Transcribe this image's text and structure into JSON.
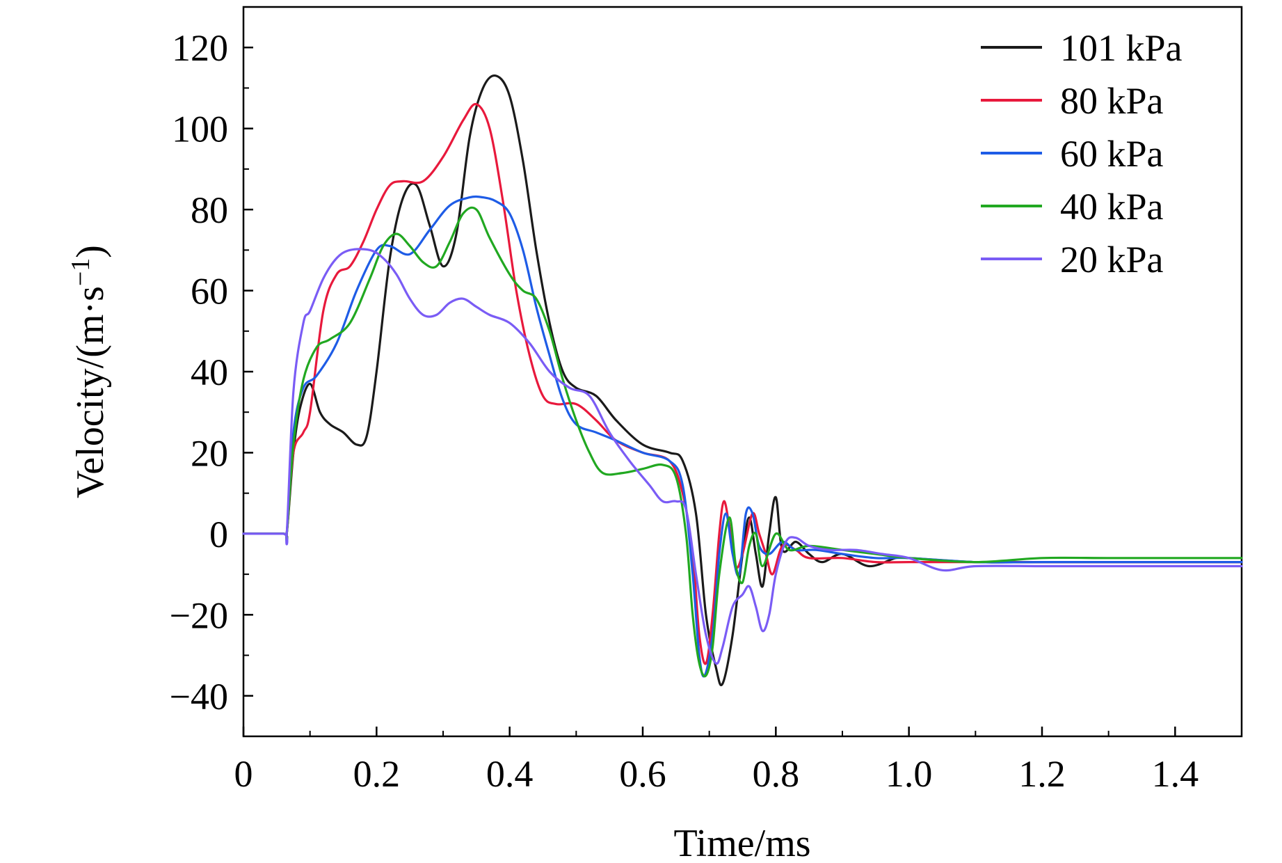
{
  "chart_data": {
    "type": "line",
    "xlabel": "Time/ms",
    "ylabel": "Velocity/(m·s",
    "ylabel_sup": "−1",
    "ylabel_close": ")",
    "xlim": [
      0,
      1.5
    ],
    "ylim": [
      -50,
      130
    ],
    "xticks": [
      0,
      0.2,
      0.4,
      0.6,
      0.8,
      1.0,
      1.2,
      1.4
    ],
    "xtick_labels": [
      "0",
      "0.2",
      "0.4",
      "0.6",
      "0.8",
      "1.0",
      "1.2",
      "1.4"
    ],
    "yticks": [
      -40,
      -20,
      0,
      20,
      40,
      60,
      80,
      100,
      120
    ],
    "ytick_labels": [
      "−40",
      "−20",
      "0",
      "20",
      "40",
      "60",
      "80",
      "100",
      "120"
    ],
    "grid": false,
    "legend_position": "top-right",
    "series": [
      {
        "name": "101 kPa",
        "color": "#1a1a1a",
        "points": [
          [
            0,
            0
          ],
          [
            0.06,
            0
          ],
          [
            0.065,
            0
          ],
          [
            0.075,
            20
          ],
          [
            0.085,
            31
          ],
          [
            0.1,
            37
          ],
          [
            0.115,
            30
          ],
          [
            0.13,
            27
          ],
          [
            0.15,
            25
          ],
          [
            0.17,
            22
          ],
          [
            0.185,
            24
          ],
          [
            0.2,
            40
          ],
          [
            0.22,
            68
          ],
          [
            0.24,
            83
          ],
          [
            0.26,
            86
          ],
          [
            0.28,
            76
          ],
          [
            0.3,
            66
          ],
          [
            0.32,
            74
          ],
          [
            0.34,
            98
          ],
          [
            0.36,
            110
          ],
          [
            0.38,
            113
          ],
          [
            0.4,
            108
          ],
          [
            0.42,
            92
          ],
          [
            0.44,
            70
          ],
          [
            0.46,
            52
          ],
          [
            0.48,
            40
          ],
          [
            0.5,
            36
          ],
          [
            0.53,
            34
          ],
          [
            0.56,
            28
          ],
          [
            0.6,
            22
          ],
          [
            0.64,
            20
          ],
          [
            0.66,
            18
          ],
          [
            0.68,
            5
          ],
          [
            0.695,
            -20
          ],
          [
            0.71,
            -33
          ],
          [
            0.72,
            -37
          ],
          [
            0.735,
            -25
          ],
          [
            0.75,
            -5
          ],
          [
            0.76,
            4
          ],
          [
            0.77,
            -5
          ],
          [
            0.78,
            -13
          ],
          [
            0.79,
            0
          ],
          [
            0.8,
            9
          ],
          [
            0.81,
            -4
          ],
          [
            0.83,
            -2
          ],
          [
            0.85,
            -5
          ],
          [
            0.87,
            -7
          ],
          [
            0.9,
            -5
          ],
          [
            0.94,
            -8
          ],
          [
            0.98,
            -6
          ],
          [
            1.0,
            -6
          ],
          [
            1.1,
            -7
          ],
          [
            1.2,
            -7
          ],
          [
            1.3,
            -7
          ],
          [
            1.4,
            -7
          ],
          [
            1.5,
            -7
          ]
        ]
      },
      {
        "name": "80 kPa",
        "color": "#e8193c",
        "points": [
          [
            0,
            0
          ],
          [
            0.06,
            0
          ],
          [
            0.065,
            0
          ],
          [
            0.075,
            20
          ],
          [
            0.09,
            25
          ],
          [
            0.1,
            30
          ],
          [
            0.12,
            55
          ],
          [
            0.14,
            64
          ],
          [
            0.16,
            66
          ],
          [
            0.18,
            72
          ],
          [
            0.2,
            80
          ],
          [
            0.22,
            86
          ],
          [
            0.24,
            87
          ],
          [
            0.27,
            87
          ],
          [
            0.3,
            93
          ],
          [
            0.33,
            102
          ],
          [
            0.35,
            106
          ],
          [
            0.37,
            100
          ],
          [
            0.39,
            82
          ],
          [
            0.41,
            60
          ],
          [
            0.43,
            44
          ],
          [
            0.45,
            34
          ],
          [
            0.47,
            32
          ],
          [
            0.5,
            32
          ],
          [
            0.53,
            28
          ],
          [
            0.56,
            23
          ],
          [
            0.6,
            20
          ],
          [
            0.64,
            18
          ],
          [
            0.66,
            10
          ],
          [
            0.675,
            -5
          ],
          [
            0.685,
            -25
          ],
          [
            0.695,
            -32
          ],
          [
            0.705,
            -20
          ],
          [
            0.715,
            0
          ],
          [
            0.722,
            8
          ],
          [
            0.73,
            2
          ],
          [
            0.74,
            -8
          ],
          [
            0.75,
            -5
          ],
          [
            0.765,
            5
          ],
          [
            0.775,
            0
          ],
          [
            0.785,
            -5
          ],
          [
            0.795,
            -10
          ],
          [
            0.81,
            -3
          ],
          [
            0.83,
            -4
          ],
          [
            0.85,
            -6
          ],
          [
            0.9,
            -6
          ],
          [
            0.95,
            -7
          ],
          [
            1.0,
            -7
          ],
          [
            1.1,
            -7
          ],
          [
            1.2,
            -7
          ],
          [
            1.3,
            -7
          ],
          [
            1.4,
            -7
          ],
          [
            1.5,
            -7
          ]
        ]
      },
      {
        "name": "60 kPa",
        "color": "#1e5ce6",
        "points": [
          [
            0,
            0
          ],
          [
            0.06,
            0
          ],
          [
            0.065,
            0
          ],
          [
            0.075,
            25
          ],
          [
            0.09,
            36
          ],
          [
            0.11,
            39
          ],
          [
            0.14,
            47
          ],
          [
            0.17,
            60
          ],
          [
            0.2,
            70
          ],
          [
            0.22,
            71
          ],
          [
            0.25,
            69
          ],
          [
            0.28,
            75
          ],
          [
            0.31,
            81
          ],
          [
            0.34,
            83
          ],
          [
            0.36,
            83
          ],
          [
            0.38,
            82
          ],
          [
            0.4,
            79
          ],
          [
            0.42,
            70
          ],
          [
            0.44,
            56
          ],
          [
            0.46,
            44
          ],
          [
            0.48,
            33
          ],
          [
            0.5,
            27
          ],
          [
            0.53,
            25
          ],
          [
            0.56,
            23
          ],
          [
            0.6,
            20
          ],
          [
            0.64,
            18
          ],
          [
            0.66,
            12
          ],
          [
            0.675,
            -10
          ],
          [
            0.685,
            -30
          ],
          [
            0.693,
            -35
          ],
          [
            0.705,
            -25
          ],
          [
            0.715,
            -5
          ],
          [
            0.725,
            5
          ],
          [
            0.735,
            -5
          ],
          [
            0.745,
            -10
          ],
          [
            0.755,
            5
          ],
          [
            0.765,
            5
          ],
          [
            0.775,
            -3
          ],
          [
            0.79,
            -5
          ],
          [
            0.81,
            -2
          ],
          [
            0.83,
            -4
          ],
          [
            0.86,
            -4
          ],
          [
            0.9,
            -5
          ],
          [
            0.95,
            -6
          ],
          [
            1.0,
            -6
          ],
          [
            1.1,
            -7
          ],
          [
            1.2,
            -7
          ],
          [
            1.3,
            -7
          ],
          [
            1.4,
            -7
          ],
          [
            1.5,
            -7
          ]
        ]
      },
      {
        "name": "40 kPa",
        "color": "#21a821",
        "points": [
          [
            0,
            0
          ],
          [
            0.06,
            0
          ],
          [
            0.065,
            0
          ],
          [
            0.075,
            22
          ],
          [
            0.09,
            38
          ],
          [
            0.11,
            46
          ],
          [
            0.13,
            48
          ],
          [
            0.16,
            52
          ],
          [
            0.19,
            63
          ],
          [
            0.21,
            71
          ],
          [
            0.23,
            74
          ],
          [
            0.25,
            71
          ],
          [
            0.27,
            67
          ],
          [
            0.29,
            66
          ],
          [
            0.31,
            72
          ],
          [
            0.33,
            79
          ],
          [
            0.35,
            80
          ],
          [
            0.37,
            73
          ],
          [
            0.4,
            64
          ],
          [
            0.42,
            60
          ],
          [
            0.44,
            58
          ],
          [
            0.46,
            50
          ],
          [
            0.48,
            38
          ],
          [
            0.5,
            28
          ],
          [
            0.52,
            20
          ],
          [
            0.54,
            15
          ],
          [
            0.57,
            15
          ],
          [
            0.6,
            16
          ],
          [
            0.63,
            17
          ],
          [
            0.65,
            14
          ],
          [
            0.665,
            0
          ],
          [
            0.675,
            -20
          ],
          [
            0.685,
            -32
          ],
          [
            0.695,
            -35
          ],
          [
            0.705,
            -28
          ],
          [
            0.715,
            -10
          ],
          [
            0.73,
            4
          ],
          [
            0.74,
            -8
          ],
          [
            0.75,
            -12
          ],
          [
            0.76,
            -3
          ],
          [
            0.77,
            0
          ],
          [
            0.78,
            -8
          ],
          [
            0.8,
            0
          ],
          [
            0.82,
            -4
          ],
          [
            0.85,
            -3
          ],
          [
            0.9,
            -4
          ],
          [
            0.95,
            -5
          ],
          [
            1.0,
            -6
          ],
          [
            1.1,
            -7
          ],
          [
            1.2,
            -6
          ],
          [
            1.3,
            -6
          ],
          [
            1.4,
            -6
          ],
          [
            1.5,
            -6
          ]
        ]
      },
      {
        "name": "20 kPa",
        "color": "#7a5cf5",
        "points": [
          [
            0,
            0
          ],
          [
            0.06,
            0
          ],
          [
            0.065,
            0
          ],
          [
            0.075,
            35
          ],
          [
            0.09,
            52
          ],
          [
            0.1,
            55
          ],
          [
            0.12,
            63
          ],
          [
            0.14,
            68
          ],
          [
            0.16,
            70
          ],
          [
            0.19,
            70
          ],
          [
            0.21,
            68
          ],
          [
            0.23,
            64
          ],
          [
            0.25,
            58
          ],
          [
            0.27,
            54
          ],
          [
            0.29,
            54
          ],
          [
            0.31,
            57
          ],
          [
            0.33,
            58
          ],
          [
            0.35,
            56
          ],
          [
            0.37,
            54
          ],
          [
            0.4,
            52
          ],
          [
            0.43,
            47
          ],
          [
            0.46,
            40
          ],
          [
            0.49,
            36
          ],
          [
            0.52,
            34
          ],
          [
            0.55,
            25
          ],
          [
            0.58,
            18
          ],
          [
            0.61,
            12
          ],
          [
            0.63,
            8
          ],
          [
            0.65,
            8
          ],
          [
            0.665,
            6
          ],
          [
            0.68,
            -10
          ],
          [
            0.695,
            -25
          ],
          [
            0.71,
            -32
          ],
          [
            0.72,
            -28
          ],
          [
            0.735,
            -18
          ],
          [
            0.75,
            -15
          ],
          [
            0.76,
            -13
          ],
          [
            0.77,
            -18
          ],
          [
            0.78,
            -24
          ],
          [
            0.79,
            -20
          ],
          [
            0.8,
            -10
          ],
          [
            0.815,
            -2
          ],
          [
            0.83,
            -1
          ],
          [
            0.85,
            -3
          ],
          [
            0.88,
            -4
          ],
          [
            0.92,
            -4
          ],
          [
            0.96,
            -5
          ],
          [
            1.0,
            -6
          ],
          [
            1.05,
            -9
          ],
          [
            1.1,
            -8
          ],
          [
            1.2,
            -8
          ],
          [
            1.3,
            -8
          ],
          [
            1.4,
            -8
          ],
          [
            1.5,
            -8
          ]
        ]
      }
    ]
  }
}
